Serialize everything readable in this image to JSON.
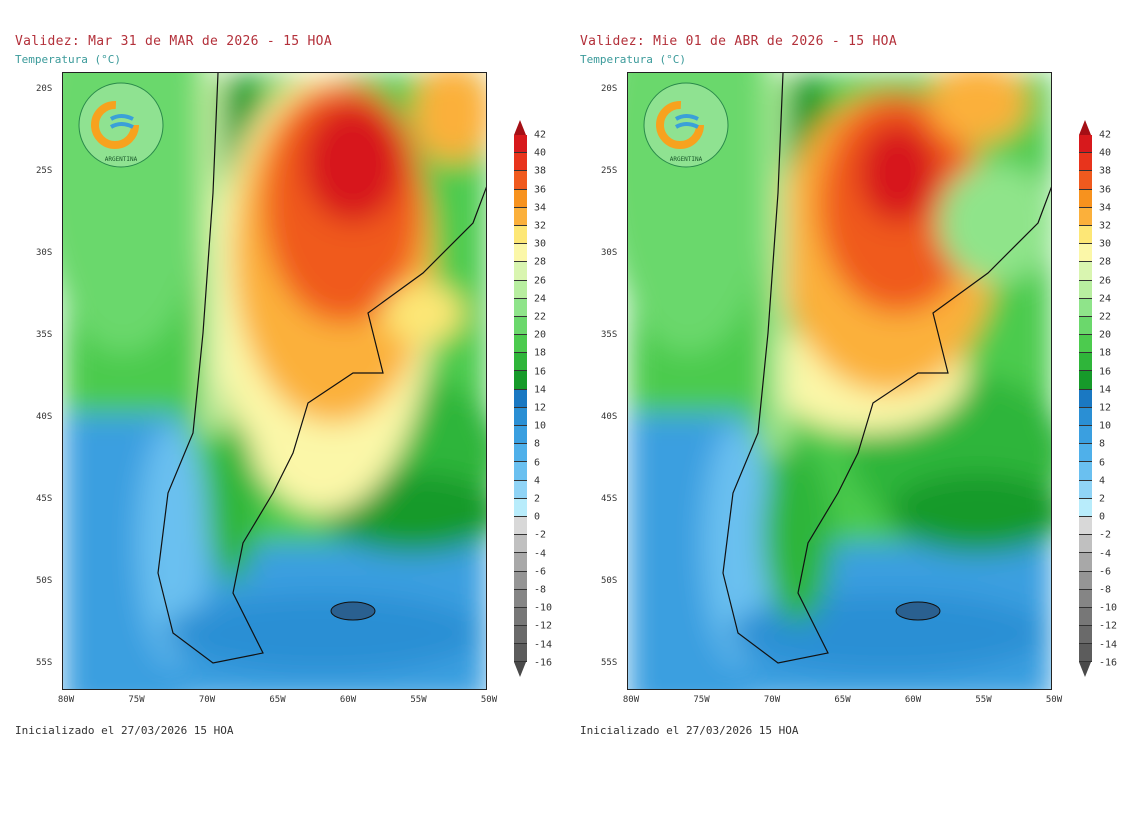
{
  "panels": [
    {
      "title": "Validez: Mar 31 de MAR de 2026 - 15 HOA",
      "subtitle": "Temperatura (°C)",
      "init": "Inicializado el 27/03/2026 15 HOA",
      "logo_text": "ARGENTINA"
    },
    {
      "title": "Validez: Mie 01 de ABR de 2026 - 15 HOA",
      "subtitle": "Temperatura (°C)",
      "init": "Inicializado el 27/03/2026 15 HOA",
      "logo_text": "ARGENTINA"
    }
  ],
  "lat_labels": [
    "20S",
    "25S",
    "30S",
    "35S",
    "40S",
    "45S",
    "50S",
    "55S"
  ],
  "lon_labels": [
    "80W",
    "75W",
    "70W",
    "65W",
    "60W",
    "55W",
    "50W"
  ],
  "colorbar": {
    "labels": [
      "42",
      "40",
      "38",
      "36",
      "34",
      "32",
      "30",
      "28",
      "26",
      "24",
      "22",
      "20",
      "18",
      "16",
      "14",
      "12",
      "10",
      "8",
      "6",
      "4",
      "2",
      "0",
      "-2",
      "-4",
      "-6",
      "-8",
      "-10",
      "-12",
      "-14",
      "-16"
    ],
    "colors": [
      "#d7191c",
      "#e8341c",
      "#f05a1e",
      "#f7921e",
      "#fbb03b",
      "#fde776",
      "#fbf7a8",
      "#d9f5b0",
      "#b8eea0",
      "#8fe48a",
      "#6bd86c",
      "#4ccb4e",
      "#2fb53a",
      "#169a2a",
      "#1a78c2",
      "#2a8fd4",
      "#3a9fe0",
      "#4fb0ea",
      "#6ac0f0",
      "#90d4f6",
      "#b8ecfb",
      "#d8d8d8",
      "#c0c0c0",
      "#a8a8a8",
      "#959595",
      "#858585",
      "#777777",
      "#6a6a6a",
      "#5c5c5c"
    ],
    "over_color": "#a50f15",
    "under_color": "#4a4a4a"
  }
}
